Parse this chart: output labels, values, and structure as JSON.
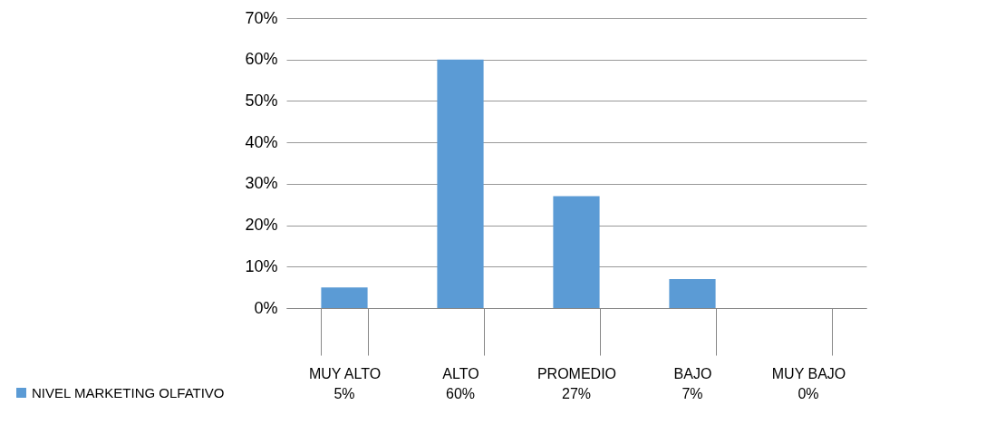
{
  "chart_data": {
    "type": "bar",
    "categories": [
      "MUY ALTO",
      "ALTO",
      "PROMEDIO",
      "BAJO",
      "MUY BAJO"
    ],
    "series": [
      {
        "name": "NIVEL MARKETING OLFATIVO",
        "color": "#5b9bd5",
        "values": [
          5,
          60,
          27,
          7,
          0
        ],
        "value_labels": [
          "5%",
          "60%",
          "27%",
          "7%",
          "0%"
        ]
      }
    ],
    "ylim": [
      0,
      70
    ],
    "yticks": [
      {
        "value": 0,
        "label": "0%"
      },
      {
        "value": 10,
        "label": "10%"
      },
      {
        "value": 20,
        "label": "20%"
      },
      {
        "value": 30,
        "label": "30%"
      },
      {
        "value": 40,
        "label": "40%"
      },
      {
        "value": 50,
        "label": "50%"
      },
      {
        "value": 60,
        "label": "60%"
      },
      {
        "value": 70,
        "label": "70%"
      }
    ],
    "grid": "y",
    "legend": "bottom left"
  }
}
